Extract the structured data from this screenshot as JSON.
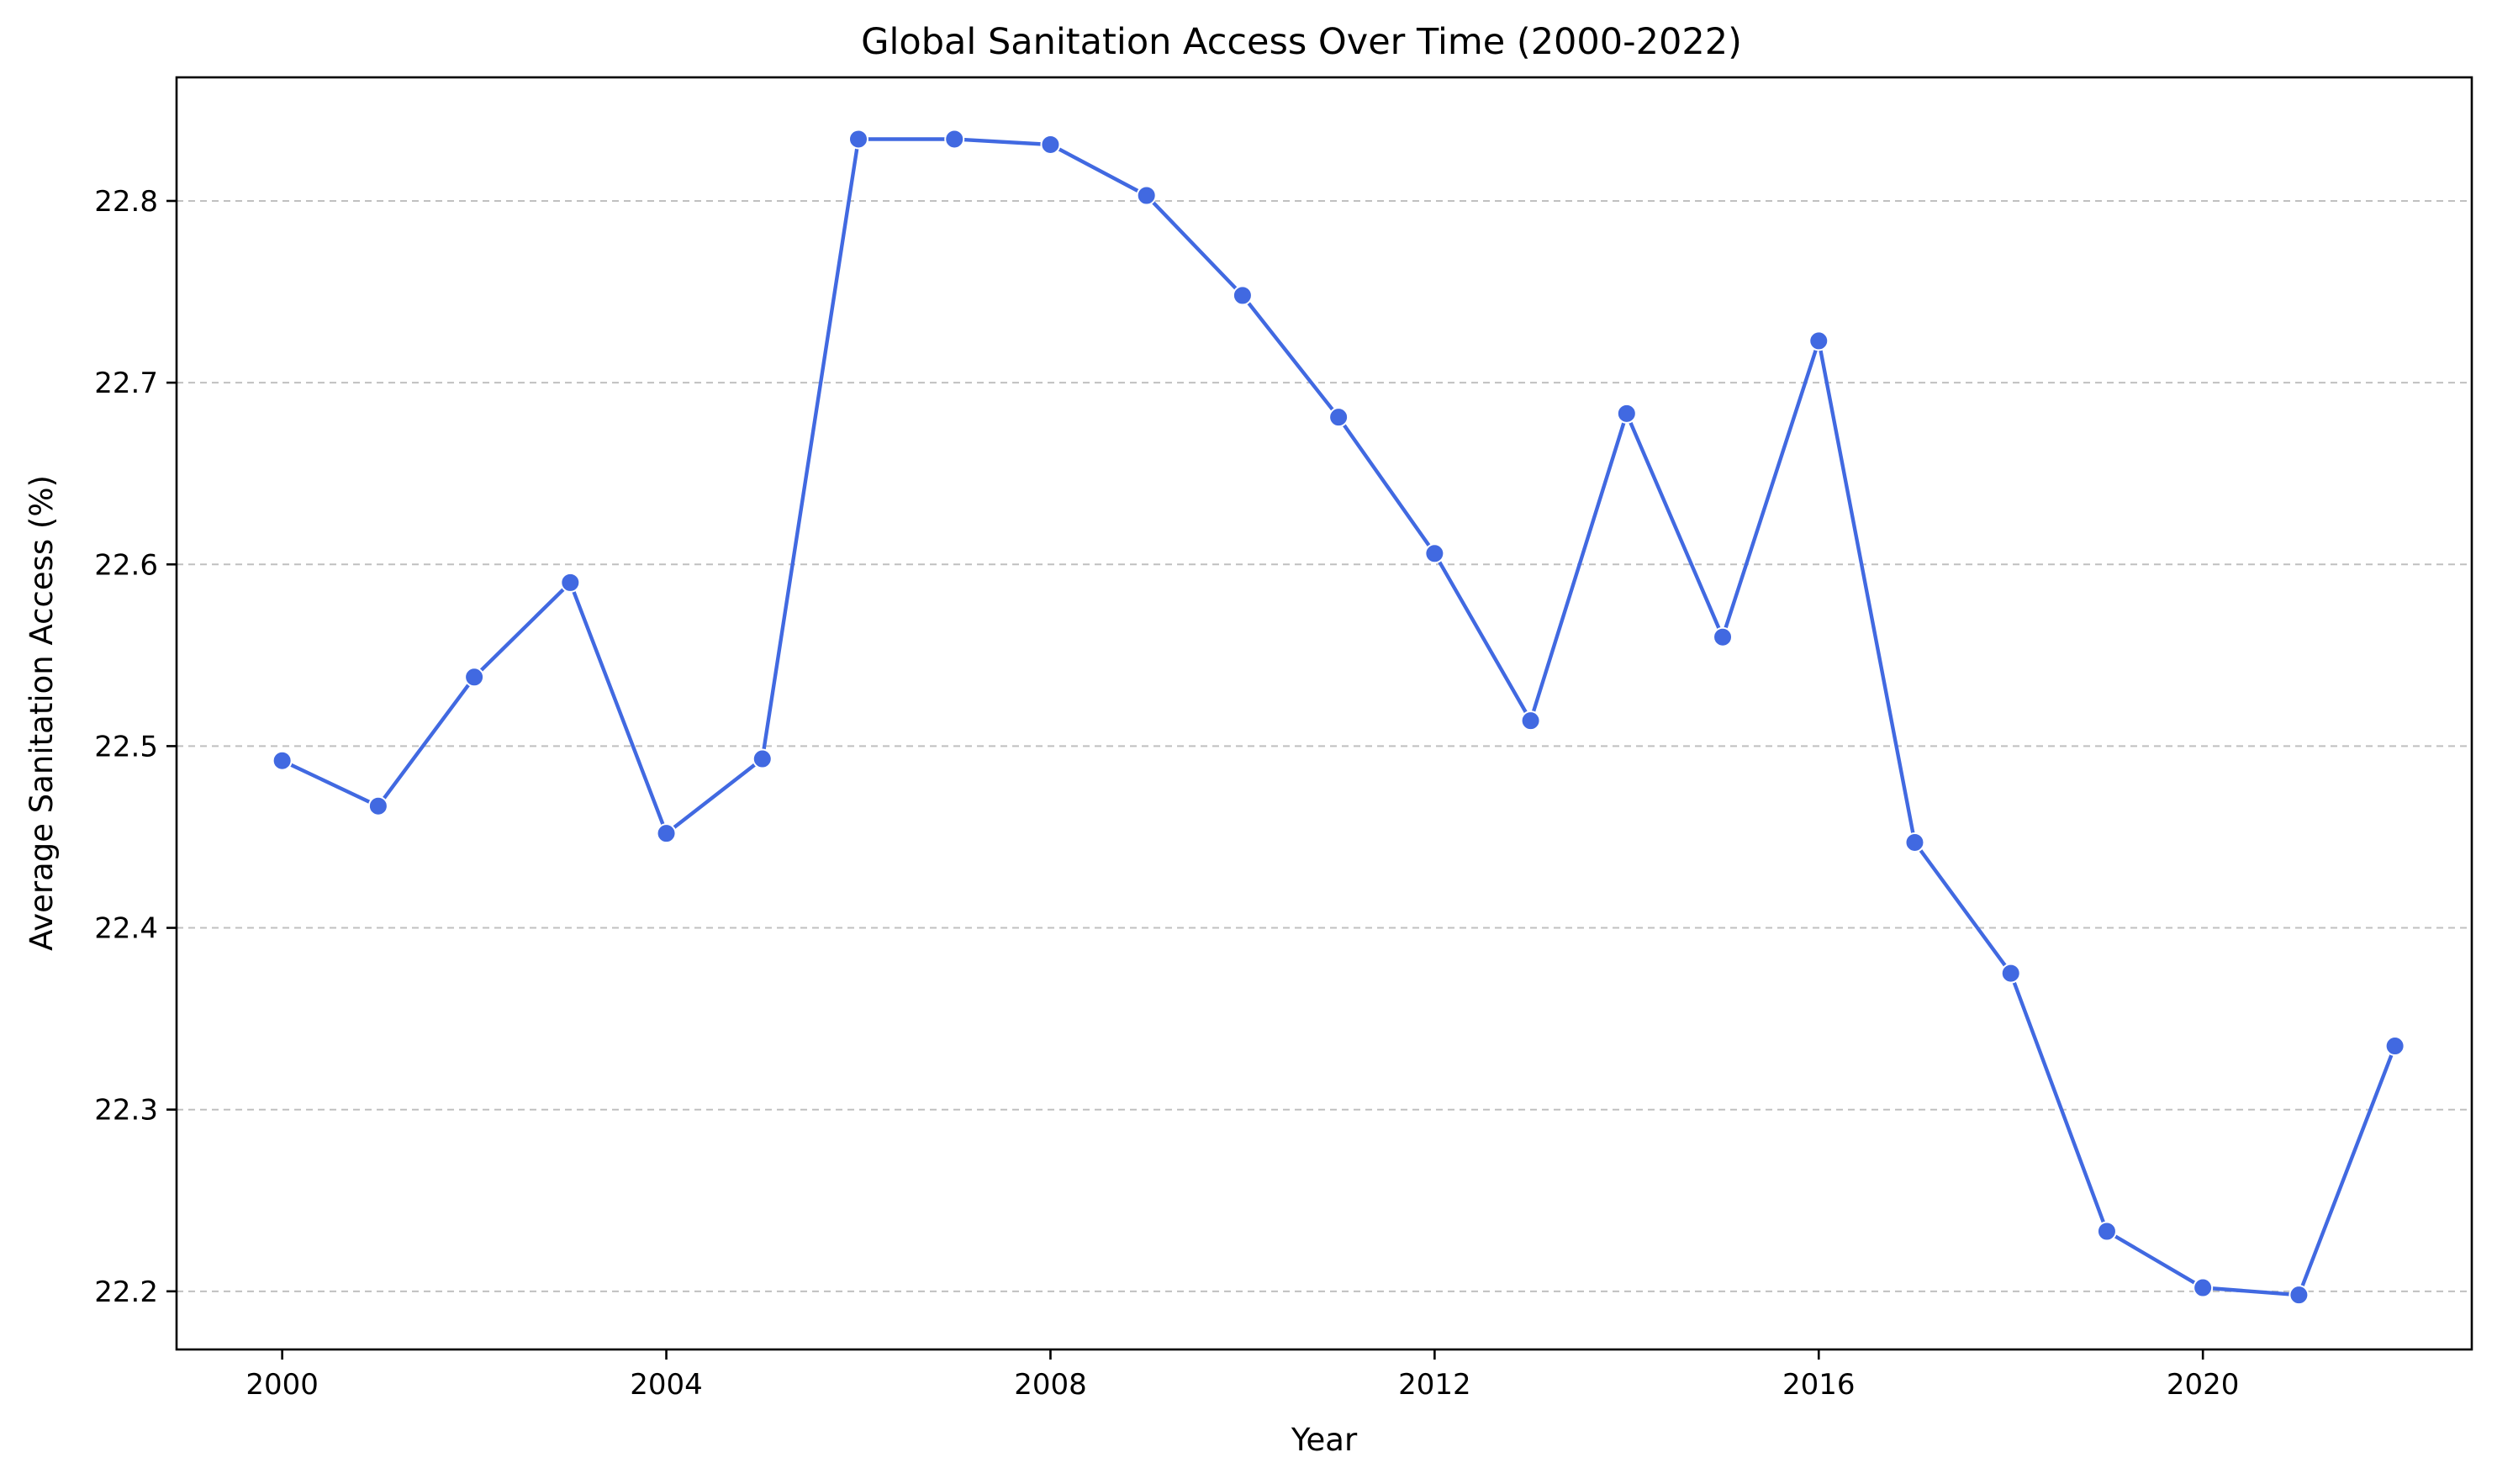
{
  "chart_data": {
    "type": "line",
    "title": "Global Sanitation Access Over Time (2000-2022)",
    "xlabel": "Year",
    "ylabel": "Average Sanitation Access (%)",
    "xlim": [
      1998.9,
      2022.8
    ],
    "ylim": [
      22.168,
      22.868
    ],
    "x_ticks": [
      2000,
      2004,
      2008,
      2012,
      2016,
      2020
    ],
    "y_ticks": [
      22.2,
      22.3,
      22.4,
      22.5,
      22.6,
      22.7,
      22.8
    ],
    "y_tick_labels": [
      "22.2",
      "22.3",
      "22.4",
      "22.5",
      "22.6",
      "22.7",
      "22.8"
    ],
    "grid": "y dashed",
    "color": "#4169e1",
    "x": [
      2000,
      2001,
      2002,
      2003,
      2004,
      2005,
      2006,
      2007,
      2008,
      2009,
      2010,
      2011,
      2012,
      2013,
      2014,
      2015,
      2016,
      2017,
      2018,
      2019,
      2020,
      2021,
      2022
    ],
    "y": [
      22.492,
      22.467,
      22.538,
      22.59,
      22.452,
      22.493,
      22.834,
      22.834,
      22.831,
      22.803,
      22.748,
      22.681,
      22.606,
      22.514,
      22.683,
      22.56,
      22.723,
      22.447,
      22.375,
      22.233,
      22.202,
      22.198,
      22.335
    ]
  }
}
